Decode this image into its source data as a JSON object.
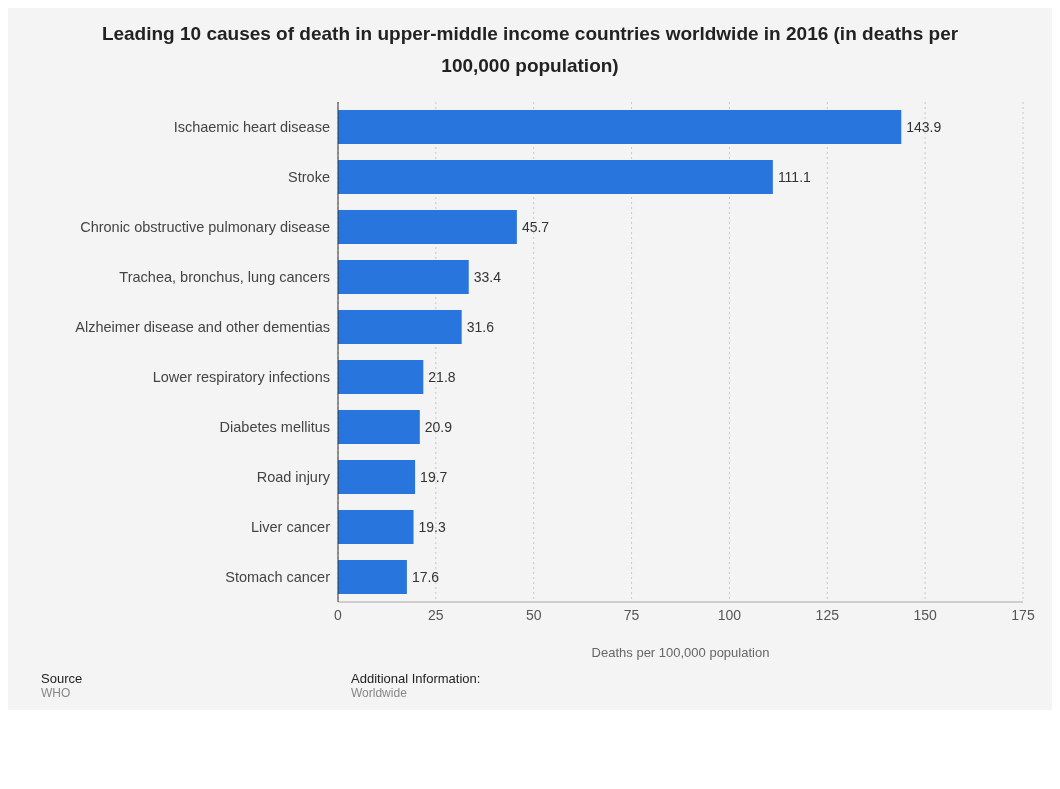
{
  "chart_data": {
    "type": "bar",
    "orientation": "horizontal",
    "title": "Leading 10 causes of death in upper-middle income countries worldwide in 2016 (in deaths per 100,000 population)",
    "xlabel": "Deaths per 100,000 population",
    "categories": [
      "Ischaemic heart disease",
      "Stroke",
      "Chronic obstructive pulmonary disease",
      "Trachea, bronchus, lung cancers",
      "Alzheimer disease and other dementias",
      "Lower respiratory infections",
      "Diabetes mellitus",
      "Road injury",
      "Liver cancer",
      "Stomach cancer"
    ],
    "values": [
      143.9,
      111.1,
      45.7,
      33.4,
      31.6,
      21.8,
      20.9,
      19.7,
      19.3,
      17.6
    ],
    "color": "#2876dd",
    "xlim": [
      0,
      175
    ],
    "xticks": [
      0,
      25,
      50,
      75,
      100,
      125,
      150,
      175
    ],
    "grid": "x",
    "data_labels": true,
    "annotations": [
      "Source",
      "WHO",
      "Additional Information:",
      "Worldwide"
    ]
  }
}
